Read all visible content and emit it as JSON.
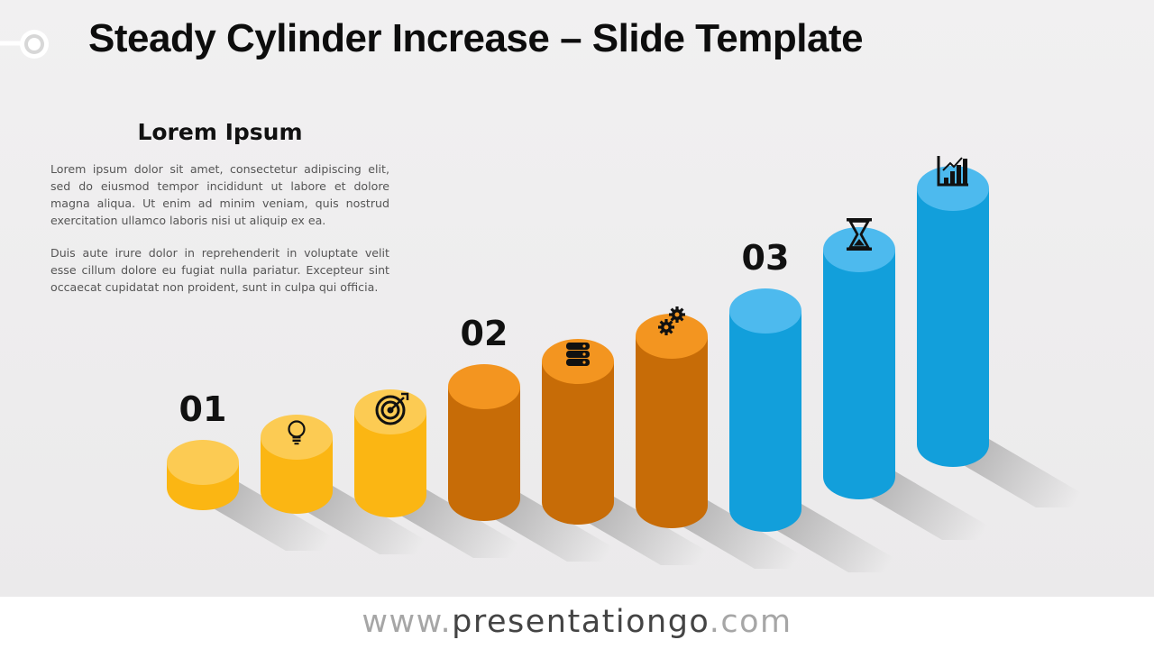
{
  "slide": {
    "title": "Steady Cylinder Increase – Slide Template"
  },
  "text_block": {
    "heading": "Lorem Ipsum",
    "paragraphs": [
      "Lorem ipsum dolor sit amet, consectetur adipiscing elit, sed do eiusmod tempor incididunt ut labore et dolore magna aliqua. Ut enim ad minim veniam, quis nostrud exercitation ullamco laboris nisi ut aliquip ex ea.",
      "Duis aute irure dolor in reprehenderit in voluptate velit esse cillum dolore eu fugiat nulla pariatur. Excepteur sint occaecat cupidatat non proident, sunt in culpa qui officia."
    ]
  },
  "chart_data": {
    "type": "bar",
    "style": "3d-cylinders",
    "categories": [
      "",
      "",
      "",
      "",
      "",
      "",
      "",
      "",
      ""
    ],
    "values": [
      1,
      2,
      3,
      4,
      5,
      6,
      7,
      8,
      9
    ],
    "groups": [
      {
        "label": "01",
        "start": 0
      },
      {
        "label": "02",
        "start": 3
      },
      {
        "label": "03",
        "start": 6
      }
    ],
    "icons": [
      "",
      "lightbulb-icon",
      "target-icon",
      "",
      "database-icon",
      "gears-icon",
      "",
      "hourglass-icon",
      "chart-icon"
    ],
    "colors": {
      "yellow": {
        "body": "#fbb613",
        "top": "#fccb53"
      },
      "orange": {
        "body": "#c76c07",
        "top": "#f39520"
      },
      "blue": {
        "body": "#129fdb",
        "top": "#4dbaee"
      }
    },
    "grid": false,
    "legend": "none"
  },
  "footer": {
    "prefix": "www.",
    "brand": "presentationgo",
    "suffix": ".com"
  }
}
